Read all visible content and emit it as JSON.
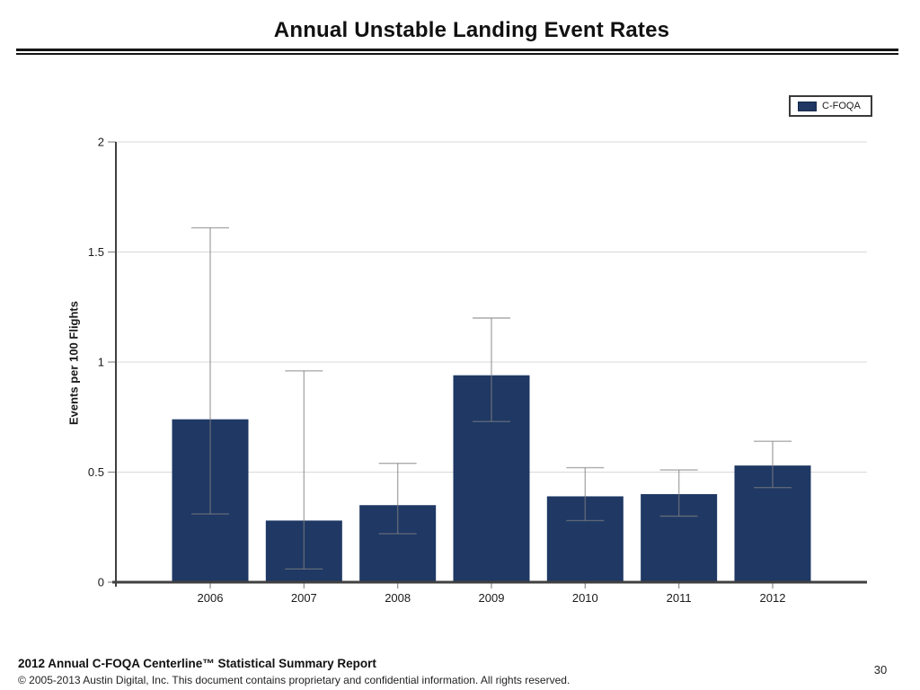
{
  "header": {
    "title": "Annual Unstable Landing Event Rates"
  },
  "legend": {
    "label": "C-FOQA"
  },
  "chart_data": {
    "type": "bar",
    "title": "Annual Unstable Landing Event Rates",
    "xlabel": "",
    "ylabel": "Events per 100 Flights",
    "categories": [
      "2006",
      "2007",
      "2008",
      "2009",
      "2010",
      "2011",
      "2012"
    ],
    "series": [
      {
        "name": "C-FOQA",
        "values": [
          0.74,
          0.28,
          0.35,
          0.94,
          0.39,
          0.4,
          0.53
        ],
        "error_low": [
          0.31,
          0.06,
          0.22,
          0.73,
          0.28,
          0.3,
          0.43
        ],
        "error_high": [
          1.61,
          0.96,
          0.54,
          1.2,
          0.52,
          0.51,
          0.64
        ]
      }
    ],
    "ylim": [
      0,
      2
    ],
    "y_ticks": [
      0,
      0.5,
      1,
      1.5,
      2
    ],
    "grid": true,
    "legend_position": "top-right",
    "colors": {
      "bar": "#1f3864",
      "error_bar": "rgba(128,128,128,0.65)",
      "grid": "#d9d9d9",
      "axis": "#404040",
      "tick": "#8c8c8c",
      "text": "#1a1a1a"
    }
  },
  "footer": {
    "report_title": "2012 Annual C-FOQA Centerline™ Statistical Summary Report",
    "copyright": "© 2005-2013 Austin Digital, Inc. This document contains proprietary and confidential information. All rights reserved.",
    "page_number": "30"
  }
}
